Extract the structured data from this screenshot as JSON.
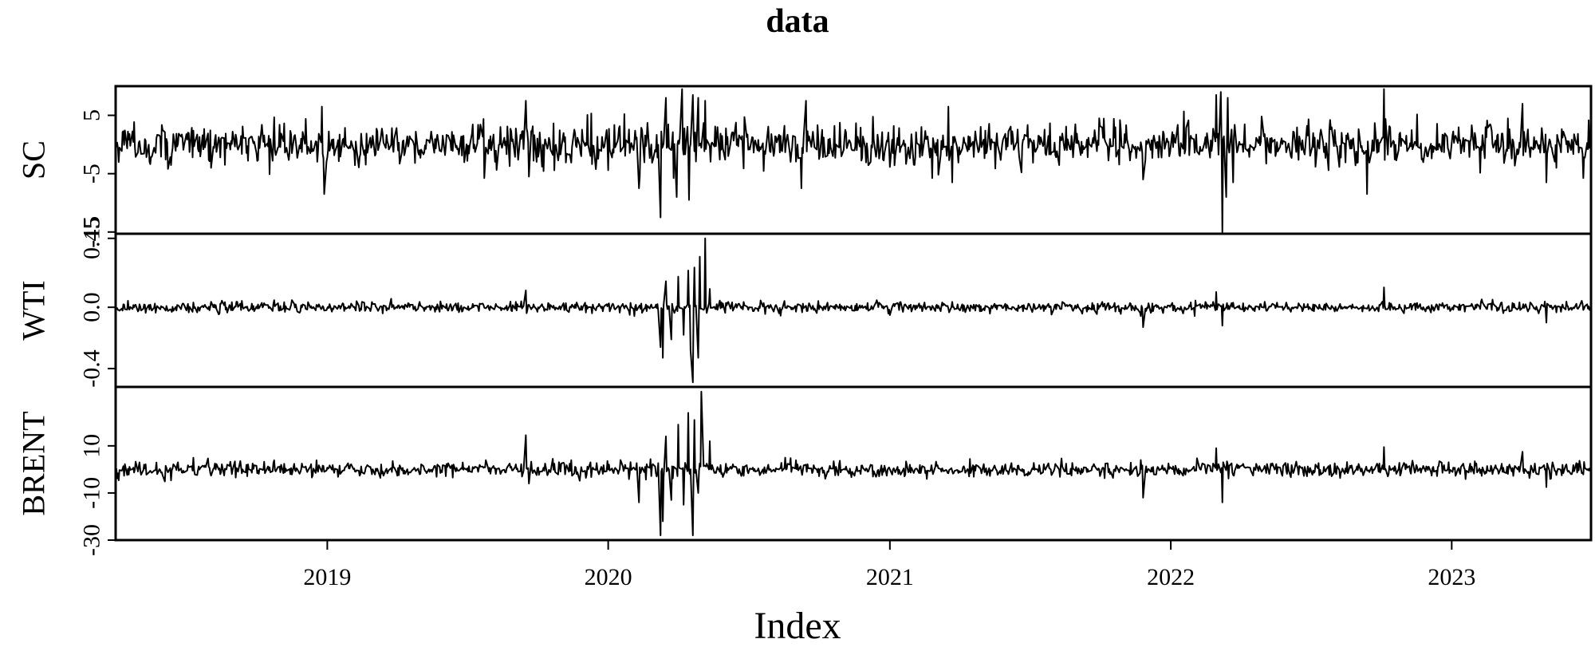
{
  "chart_data": {
    "type": "line",
    "title": "data",
    "xlabel": "Index",
    "x_tick_labels": [
      "2019",
      "2020",
      "2021",
      "2022",
      "2023"
    ],
    "x_ticks": [
      "2019-01-01",
      "2020-01-01",
      "2021-01-01",
      "2022-01-01",
      "2023-01-01"
    ],
    "x_range": [
      "2018-04-01",
      "2023-07-01"
    ],
    "grid": false,
    "legend": "none",
    "line_color": "#000000",
    "panels": [
      {
        "name": "SC",
        "ylabel": "SC",
        "ylim": [
          -15.3,
          10
        ],
        "y_ticks": [
          5,
          -5,
          -15
        ],
        "y_tick_labels": [
          "5",
          "-5",
          "-15"
        ],
        "baseline": 0,
        "noise_sd": 1.8,
        "extremes": [
          {
            "date": "2018-12-25",
            "value": 6.5
          },
          {
            "date": "2018-12-28",
            "value": -8.5
          },
          {
            "date": "2019-09-16",
            "value": 7.5
          },
          {
            "date": "2019-09-20",
            "value": -5.5
          },
          {
            "date": "2020-02-10",
            "value": -7.5
          },
          {
            "date": "2020-03-09",
            "value": -12.5
          },
          {
            "date": "2020-03-16",
            "value": 8.0
          },
          {
            "date": "2020-03-30",
            "value": -9.0
          },
          {
            "date": "2020-04-06",
            "value": 9.5
          },
          {
            "date": "2020-04-15",
            "value": -9.5
          },
          {
            "date": "2020-04-20",
            "value": 8.5
          },
          {
            "date": "2020-04-27",
            "value": 8.0
          },
          {
            "date": "2020-05-06",
            "value": 7.5
          },
          {
            "date": "2020-09-08",
            "value": -7.5
          },
          {
            "date": "2020-09-14",
            "value": 7.5
          },
          {
            "date": "2021-03-18",
            "value": 6.5
          },
          {
            "date": "2021-03-23",
            "value": -6.5
          },
          {
            "date": "2021-11-26",
            "value": -6.0
          },
          {
            "date": "2022-03-01",
            "value": 8.5
          },
          {
            "date": "2022-03-07",
            "value": 9.0
          },
          {
            "date": "2022-03-09",
            "value": -15.0
          },
          {
            "date": "2022-03-14",
            "value": -9.0
          },
          {
            "date": "2022-03-16",
            "value": 8.0
          },
          {
            "date": "2022-03-23",
            "value": -6.5
          },
          {
            "date": "2022-10-05",
            "value": 9.5
          },
          {
            "date": "2022-09-13",
            "value": -8.5
          },
          {
            "date": "2023-04-03",
            "value": 7.0
          },
          {
            "date": "2023-05-04",
            "value": -6.5
          }
        ]
      },
      {
        "name": "WTI",
        "ylabel": "WTI",
        "ylim": [
          -0.52,
          0.48
        ],
        "y_ticks": [
          0.45,
          0.0,
          -0.4
        ],
        "y_tick_labels": [
          "0.45",
          "0.0",
          "-0.4"
        ],
        "baseline": 0,
        "noise_sd": 0.018,
        "extremes": [
          {
            "date": "2019-09-16",
            "value": 0.11
          },
          {
            "date": "2020-03-09",
            "value": -0.26
          },
          {
            "date": "2020-03-12",
            "value": -0.33
          },
          {
            "date": "2020-03-16",
            "value": 0.17
          },
          {
            "date": "2020-03-23",
            "value": -0.21
          },
          {
            "date": "2020-04-01",
            "value": 0.2
          },
          {
            "date": "2020-04-08",
            "value": -0.18
          },
          {
            "date": "2020-04-14",
            "value": 0.24
          },
          {
            "date": "2020-04-17",
            "value": -0.28
          },
          {
            "date": "2020-04-20",
            "value": -0.49
          },
          {
            "date": "2020-04-22",
            "value": 0.26
          },
          {
            "date": "2020-04-27",
            "value": -0.33
          },
          {
            "date": "2020-04-29",
            "value": 0.33
          },
          {
            "date": "2020-05-06",
            "value": 0.45
          },
          {
            "date": "2020-05-12",
            "value": 0.12
          },
          {
            "date": "2021-11-26",
            "value": -0.13
          },
          {
            "date": "2022-03-01",
            "value": 0.1
          },
          {
            "date": "2022-03-09",
            "value": -0.12
          },
          {
            "date": "2022-10-05",
            "value": 0.13
          },
          {
            "date": "2023-05-04",
            "value": -0.1
          }
        ]
      },
      {
        "name": "BRENT",
        "ylabel": "BRENT",
        "ylim": [
          -30,
          35
        ],
        "y_ticks": [
          10,
          -10,
          -30
        ],
        "y_tick_labels": [
          "10",
          "-10",
          "-30"
        ],
        "baseline": 0,
        "noise_sd": 1.6,
        "extremes": [
          {
            "date": "2019-09-16",
            "value": 14.5
          },
          {
            "date": "2019-09-20",
            "value": -6.0
          },
          {
            "date": "2020-02-10",
            "value": -14.0
          },
          {
            "date": "2020-03-09",
            "value": -28.0
          },
          {
            "date": "2020-03-12",
            "value": -22.0
          },
          {
            "date": "2020-03-16",
            "value": 14.0
          },
          {
            "date": "2020-03-23",
            "value": -13.0
          },
          {
            "date": "2020-04-01",
            "value": 19.0
          },
          {
            "date": "2020-04-08",
            "value": -15.0
          },
          {
            "date": "2020-04-14",
            "value": 24.0
          },
          {
            "date": "2020-04-20",
            "value": -28.0
          },
          {
            "date": "2020-04-22",
            "value": 21.0
          },
          {
            "date": "2020-04-27",
            "value": -10.0
          },
          {
            "date": "2020-05-01",
            "value": 33.0
          },
          {
            "date": "2020-05-12",
            "value": 12.0
          },
          {
            "date": "2021-11-26",
            "value": -12.0
          },
          {
            "date": "2022-03-01",
            "value": 9.0
          },
          {
            "date": "2022-03-09",
            "value": -14.0
          },
          {
            "date": "2022-10-05",
            "value": 9.5
          },
          {
            "date": "2023-04-03",
            "value": 7.5
          },
          {
            "date": "2023-05-04",
            "value": -7.5
          }
        ]
      }
    ]
  }
}
